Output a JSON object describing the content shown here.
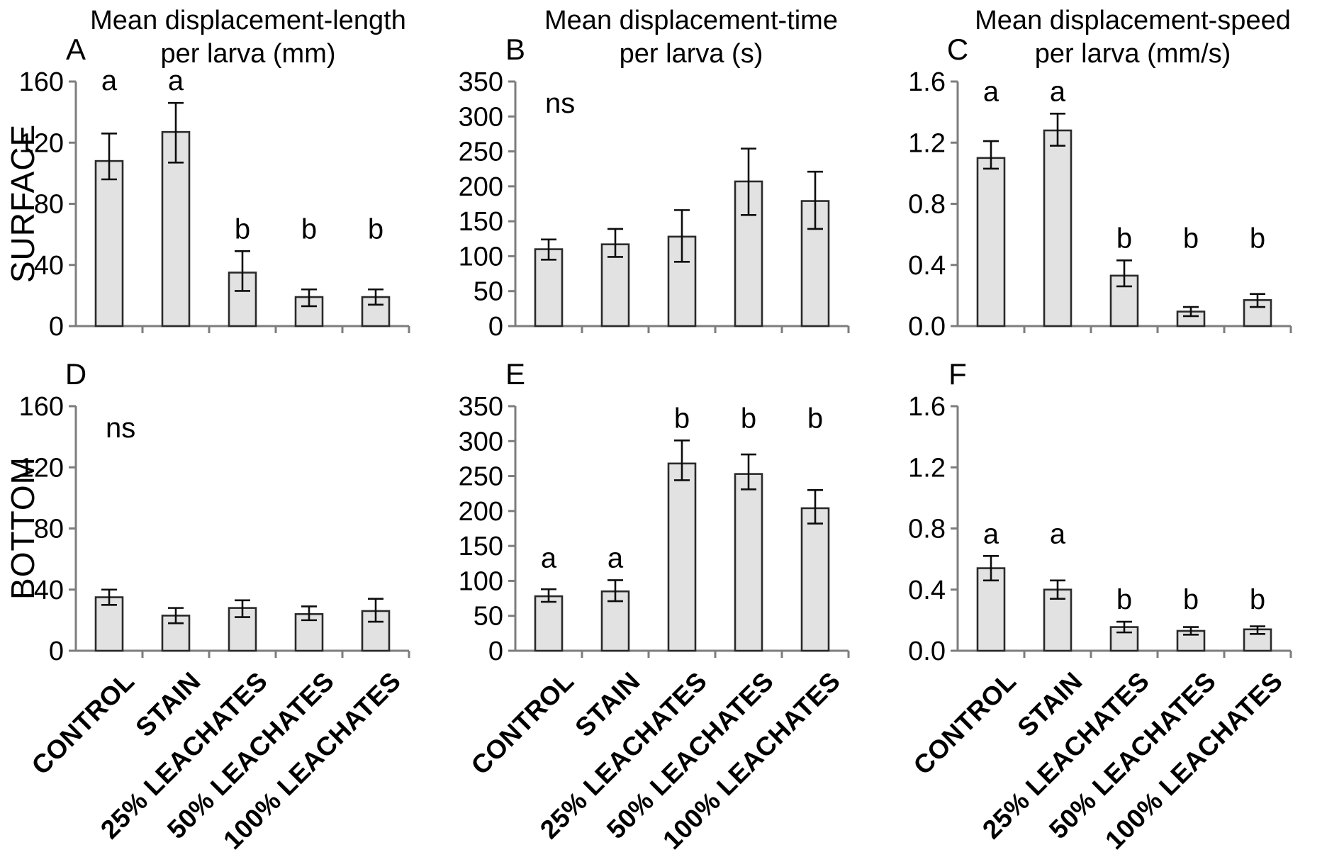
{
  "figure": {
    "row_labels": [
      "SURFACE",
      "BOTTOM"
    ],
    "column_titles": [
      {
        "line1": "Mean displacement-length",
        "line2": "per larva (mm)"
      },
      {
        "line1": "Mean displacement-time",
        "line2": "per larva (s)"
      },
      {
        "line1": "Mean displacement-speed",
        "line2": "per larva (mm/s)"
      }
    ],
    "categories": [
      "CONTROL",
      "STAIN",
      "25% LEACHATES",
      "50% LEACHATES",
      "100% LEACHATES"
    ],
    "colors": {
      "bar_fill": "#e2e2e2",
      "bar_border": "#2a2a2a",
      "error_bar": "#0d0d0d",
      "axis": "#7d7d7d",
      "text": "#000000",
      "background": "#ffffff"
    }
  },
  "chart_data": [
    {
      "type": "bar",
      "panel_letter": "A",
      "row_label": "SURFACE",
      "title": "Mean displacement-length per larva (mm)",
      "categories": [
        "CONTROL",
        "STAIN",
        "25% LEACHATES",
        "50% LEACHATES",
        "100% LEACHATES"
      ],
      "values": [
        108,
        127,
        35,
        19,
        19
      ],
      "err_low": [
        96,
        107,
        23,
        13,
        14
      ],
      "err_high": [
        126,
        146,
        49,
        24,
        24
      ],
      "sig_letters": [
        "a",
        "a",
        "b",
        "b",
        "b"
      ],
      "annotation": "",
      "ylim": [
        0,
        160
      ],
      "yticks": [
        0,
        40,
        80,
        120,
        160
      ],
      "ytick_labels": [
        "0",
        "40",
        "80",
        "120",
        "160"
      ],
      "grid": false,
      "legend": "none"
    },
    {
      "type": "bar",
      "panel_letter": "B",
      "row_label": "SURFACE",
      "title": "Mean displacement-time per larva (s)",
      "categories": [
        "CONTROL",
        "STAIN",
        "25% LEACHATES",
        "50% LEACHATES",
        "100% LEACHATES"
      ],
      "values": [
        110,
        117,
        128,
        207,
        179
      ],
      "err_low": [
        95,
        99,
        92,
        159,
        139
      ],
      "err_high": [
        124,
        139,
        166,
        254,
        221
      ],
      "sig_letters": null,
      "annotation": "ns",
      "ylim": [
        0,
        350
      ],
      "yticks": [
        0,
        50,
        100,
        150,
        200,
        250,
        300,
        350
      ],
      "ytick_labels": [
        "0",
        "50",
        "100",
        "150",
        "200",
        "250",
        "300",
        "350"
      ],
      "grid": false,
      "legend": "none"
    },
    {
      "type": "bar",
      "panel_letter": "C",
      "row_label": "SURFACE",
      "title": "Mean displacement-speed per larva (mm/s)",
      "categories": [
        "CONTROL",
        "STAIN",
        "25% LEACHATES",
        "50% LEACHATES",
        "100% LEACHATES"
      ],
      "values": [
        1.1,
        1.28,
        0.33,
        0.095,
        0.17
      ],
      "err_low": [
        1.03,
        1.18,
        0.26,
        0.065,
        0.125
      ],
      "err_high": [
        1.21,
        1.39,
        0.43,
        0.125,
        0.21
      ],
      "sig_letters": [
        "a",
        "a",
        "b",
        "b",
        "b"
      ],
      "annotation": "",
      "ylim": [
        0,
        1.6
      ],
      "yticks": [
        0,
        0.4,
        0.8,
        1.2,
        1.6
      ],
      "ytick_labels": [
        "0.0",
        "0.4",
        "0.8",
        "1.2",
        "1.6"
      ],
      "grid": false,
      "legend": "none"
    },
    {
      "type": "bar",
      "panel_letter": "D",
      "row_label": "BOTTOM",
      "title": "Mean displacement-length per larva (mm)",
      "categories": [
        "CONTROL",
        "STAIN",
        "25% LEACHATES",
        "50% LEACHATES",
        "100% LEACHATES"
      ],
      "values": [
        35,
        23,
        28,
        24,
        26
      ],
      "err_low": [
        30,
        18,
        22,
        20,
        19
      ],
      "err_high": [
        40,
        28,
        33,
        29,
        34
      ],
      "sig_letters": null,
      "annotation": "ns",
      "ylim": [
        0,
        160
      ],
      "yticks": [
        0,
        40,
        80,
        120,
        160
      ],
      "ytick_labels": [
        "0",
        "40",
        "80",
        "120",
        "160"
      ],
      "grid": false,
      "legend": "none"
    },
    {
      "type": "bar",
      "panel_letter": "E",
      "row_label": "BOTTOM",
      "title": "Mean displacement-time per larva (s)",
      "categories": [
        "CONTROL",
        "STAIN",
        "25% LEACHATES",
        "50% LEACHATES",
        "100% LEACHATES"
      ],
      "values": [
        78,
        85,
        268,
        253,
        204
      ],
      "err_low": [
        70,
        71,
        244,
        231,
        182
      ],
      "err_high": [
        88,
        101,
        301,
        281,
        230
      ],
      "sig_letters": [
        "a",
        "a",
        "b",
        "b",
        "b"
      ],
      "annotation": "",
      "ylim": [
        0,
        350
      ],
      "yticks": [
        0,
        50,
        100,
        150,
        200,
        250,
        300,
        350
      ],
      "ytick_labels": [
        "0",
        "50",
        "100",
        "150",
        "200",
        "250",
        "300",
        "350"
      ],
      "grid": false,
      "legend": "none"
    },
    {
      "type": "bar",
      "panel_letter": "F",
      "row_label": "BOTTOM",
      "title": "Mean displacement-speed per larva (mm/s)",
      "categories": [
        "CONTROL",
        "STAIN",
        "25% LEACHATES",
        "50% LEACHATES",
        "100% LEACHATES"
      ],
      "values": [
        0.54,
        0.4,
        0.155,
        0.13,
        0.14
      ],
      "err_low": [
        0.46,
        0.34,
        0.12,
        0.105,
        0.11
      ],
      "err_high": [
        0.62,
        0.46,
        0.19,
        0.155,
        0.16
      ],
      "sig_letters": [
        "a",
        "a",
        "b",
        "b",
        "b"
      ],
      "annotation": "",
      "ylim": [
        0,
        1.6
      ],
      "yticks": [
        0,
        0.4,
        0.8,
        1.2,
        1.6
      ],
      "ytick_labels": [
        "0.0",
        "0.4",
        "0.8",
        "1.2",
        "1.6"
      ],
      "grid": false,
      "legend": "none"
    }
  ]
}
